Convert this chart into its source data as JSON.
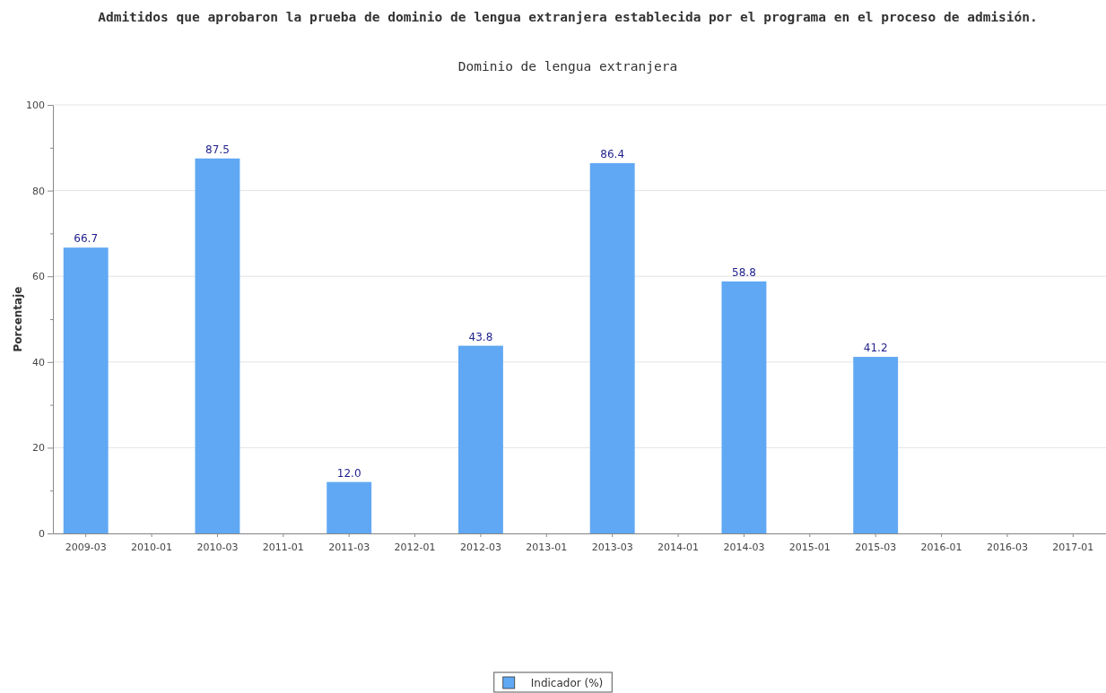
{
  "chart_data": {
    "type": "bar",
    "title": "Admitidos que aprobaron la prueba de dominio de lengua extranjera establecida por el programa en el proceso de admisión.",
    "subtitle": "Dominio de lengua extranjera",
    "ylabel": "Porcentaje",
    "categories": [
      "2009-03",
      "2010-01",
      "2010-03",
      "2011-01",
      "2011-03",
      "2012-01",
      "2012-03",
      "2013-01",
      "2013-03",
      "2014-01",
      "2014-03",
      "2015-01",
      "2015-03",
      "2016-01",
      "2016-03",
      "2017-01"
    ],
    "series": [
      {
        "name": "Indicador (%)",
        "color": "#60a8f3",
        "values": [
          66.7,
          null,
          87.5,
          null,
          12.0,
          null,
          43.8,
          null,
          86.4,
          null,
          58.8,
          null,
          41.2,
          null,
          null,
          null
        ],
        "value_labels": [
          "66.7",
          null,
          "87.5",
          null,
          "12.0",
          null,
          "43.8",
          null,
          "86.4",
          null,
          "58.8",
          null,
          "41.2",
          null,
          null,
          null
        ]
      }
    ],
    "ylim": [
      0,
      100
    ],
    "yticks": [
      0,
      {
        "value": 10,
        "label": null
      },
      20,
      {
        "value": 30,
        "label": null
      },
      40,
      {
        "value": 50,
        "label": null
      },
      60,
      {
        "value": 70,
        "label": null
      },
      80,
      {
        "value": 90,
        "label": null
      },
      100
    ],
    "grid": "y",
    "legend": "bottom"
  }
}
